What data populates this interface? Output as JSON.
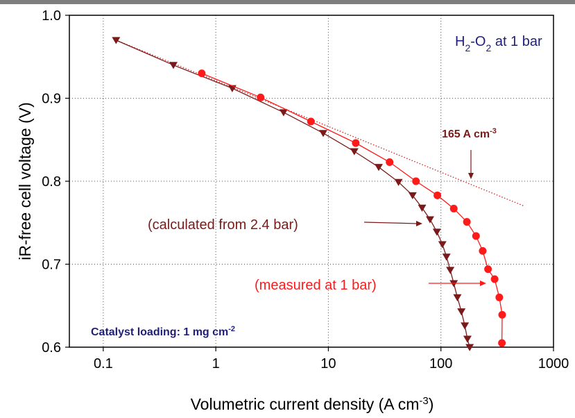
{
  "chart_data": {
    "type": "scatter",
    "title": "",
    "xlabel": "Volumetric current density (A cm",
    "xlabel_sup": "-3",
    "xlabel_end": ")",
    "ylabel": "iR-free cell voltage (V)",
    "x_scale": "log",
    "xlim": [
      0.05,
      1000
    ],
    "ylim": [
      0.6,
      1.0
    ],
    "x_ticks": [
      "0.1",
      "1",
      "10",
      "100",
      "1000"
    ],
    "y_ticks": [
      "0.6",
      "0.7",
      "0.8",
      "0.9",
      "1.0"
    ],
    "grid": true,
    "series": [
      {
        "name": "(calculated from 2.4 bar)",
        "color": "#7b1a1a",
        "marker": "triangle-down",
        "x": [
          0.13,
          0.42,
          1.4,
          4.0,
          9.0,
          17,
          28,
          42,
          56,
          68,
          80,
          92,
          103,
          112,
          121,
          130,
          140,
          152,
          163,
          172,
          180
        ],
        "y": [
          0.97,
          0.94,
          0.912,
          0.883,
          0.858,
          0.836,
          0.817,
          0.799,
          0.783,
          0.768,
          0.754,
          0.739,
          0.724,
          0.709,
          0.693,
          0.677,
          0.66,
          0.643,
          0.626,
          0.61,
          0.6
        ]
      },
      {
        "name": "(measured at 1 bar)",
        "color": "#ff1a1a",
        "marker": "circle",
        "x": [
          0.75,
          2.5,
          7,
          17.5,
          35,
          60,
          93,
          130,
          170,
          205,
          235,
          262,
          300,
          330,
          350,
          348
        ],
        "y": [
          0.93,
          0.901,
          0.872,
          0.846,
          0.823,
          0.8,
          0.783,
          0.767,
          0.751,
          0.734,
          0.716,
          0.694,
          0.682,
          0.66,
          0.639,
          0.605
        ]
      }
    ],
    "tafel_line": {
      "x": [
        0.13,
        550
      ],
      "y": [
        0.97,
        0.77
      ],
      "color": "#cc2222",
      "style": "dotted"
    },
    "annotations": {
      "gas_label": {
        "main": "H",
        "sub1": "2",
        "mid": "-O",
        "sub2": "2",
        "end": " at 1 bar",
        "color": "#1f1f7a"
      },
      "tafel_point": {
        "text": "165 A cm",
        "sup": "-3",
        "color": "#7b1a1a",
        "x": 165,
        "y": 0.8
      },
      "calculated_label": {
        "text": "(calculated from 2.4 bar)",
        "color": "#7b1a1a"
      },
      "measured_label": {
        "text": "(measured at 1 bar)",
        "color": "#ff1a1a"
      },
      "loading": {
        "text": "Catalyst loading: 1 mg cm",
        "sup": "-2",
        "color": "#1f1f7a"
      }
    }
  }
}
